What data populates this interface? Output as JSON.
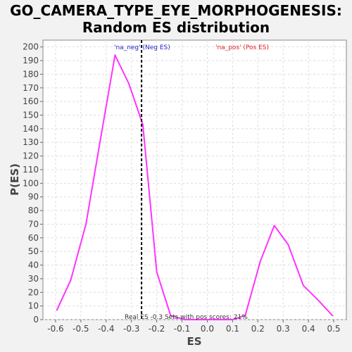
{
  "chart_data": {
    "type": "line",
    "title_line1": "GO_CAMERA_TYPE_EYE_MORPHOGENESIS:",
    "title_line2": "Random ES distribution",
    "xlabel": "ES",
    "ylabel": "P(ES)",
    "xlim": [
      -0.65,
      0.55
    ],
    "ylim": [
      0,
      205
    ],
    "xticks": [
      -0.6,
      -0.5,
      -0.4,
      -0.3,
      -0.2,
      -0.1,
      0.0,
      0.1,
      0.2,
      0.3,
      0.4,
      0.5
    ],
    "xtick_labels": [
      "-0.6",
      "-0.5",
      "-0.4",
      "-0.3",
      "-0.2",
      "-0.1",
      "0.0",
      "0.1",
      "0.2",
      "0.3",
      "0.4",
      "0.5"
    ],
    "yticks": [
      0,
      10,
      20,
      30,
      40,
      50,
      60,
      70,
      80,
      90,
      100,
      110,
      120,
      130,
      140,
      150,
      160,
      170,
      180,
      190,
      200
    ],
    "grid": true,
    "series": [
      {
        "color": "#ff33ff",
        "x": [
          -0.595,
          -0.54,
          -0.48,
          -0.42,
          -0.365,
          -0.31,
          -0.255,
          -0.2,
          -0.145,
          -0.09,
          -0.035,
          0.02,
          0.07,
          0.1,
          0.15,
          0.21,
          0.265,
          0.32,
          0.38,
          0.44,
          0.495
        ],
        "y": [
          7,
          29,
          70,
          135,
          194,
          173,
          143,
          35,
          3,
          0,
          0,
          0,
          0,
          0,
          3,
          43,
          69,
          55,
          25,
          14,
          3
        ]
      }
    ],
    "real_es_line": {
      "x": -0.26,
      "style": "dashed",
      "color": "#000000"
    },
    "annotations": {
      "neg_label": "'na_neg' (Neg ES)",
      "neg_color": "#2222cc",
      "pos_label": "'na_pos' (Pos ES)",
      "pos_color": "#dd2222",
      "bottom_note": "Real ES -0.3 Sets with pos scores: 21%"
    }
  }
}
